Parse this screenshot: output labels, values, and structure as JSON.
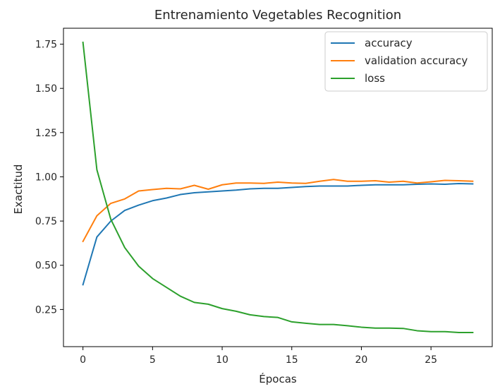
{
  "chart_data": {
    "type": "line",
    "title": "Entrenamiento Vegetables Recognition",
    "xlabel": "Épocas",
    "ylabel": "Exactitud",
    "xlim": [
      -1.4,
      29.4
    ],
    "ylim": [
      0.04,
      1.84
    ],
    "xticks": [
      0,
      5,
      10,
      15,
      20,
      25
    ],
    "yticks": [
      0.25,
      0.5,
      0.75,
      1.0,
      1.25,
      1.5,
      1.75
    ],
    "grid": false,
    "legend_position": "top-right",
    "x": [
      0,
      1,
      2,
      3,
      4,
      5,
      6,
      7,
      8,
      9,
      10,
      11,
      12,
      13,
      14,
      15,
      16,
      17,
      18,
      19,
      20,
      21,
      22,
      23,
      24,
      25,
      26,
      27,
      28
    ],
    "series": [
      {
        "name": "accuracy",
        "color": "#1f77b4",
        "values": [
          0.39,
          0.66,
          0.75,
          0.81,
          0.84,
          0.865,
          0.88,
          0.9,
          0.91,
          0.915,
          0.92,
          0.925,
          0.932,
          0.935,
          0.935,
          0.94,
          0.945,
          0.948,
          0.948,
          0.948,
          0.952,
          0.955,
          0.955,
          0.955,
          0.958,
          0.96,
          0.958,
          0.962,
          0.96
        ]
      },
      {
        "name": "validation accuracy",
        "color": "#ff7f0e",
        "values": [
          0.635,
          0.78,
          0.85,
          0.875,
          0.92,
          0.928,
          0.935,
          0.932,
          0.952,
          0.93,
          0.955,
          0.965,
          0.965,
          0.963,
          0.97,
          0.965,
          0.963,
          0.975,
          0.985,
          0.975,
          0.975,
          0.978,
          0.97,
          0.975,
          0.965,
          0.972,
          0.98,
          0.978,
          0.975
        ]
      },
      {
        "name": "loss",
        "color": "#2ca02c",
        "values": [
          1.76,
          1.04,
          0.76,
          0.6,
          0.495,
          0.425,
          0.375,
          0.325,
          0.29,
          0.28,
          0.255,
          0.24,
          0.22,
          0.21,
          0.205,
          0.18,
          0.172,
          0.165,
          0.165,
          0.158,
          0.15,
          0.145,
          0.145,
          0.143,
          0.13,
          0.125,
          0.125,
          0.12,
          0.12
        ]
      }
    ]
  }
}
